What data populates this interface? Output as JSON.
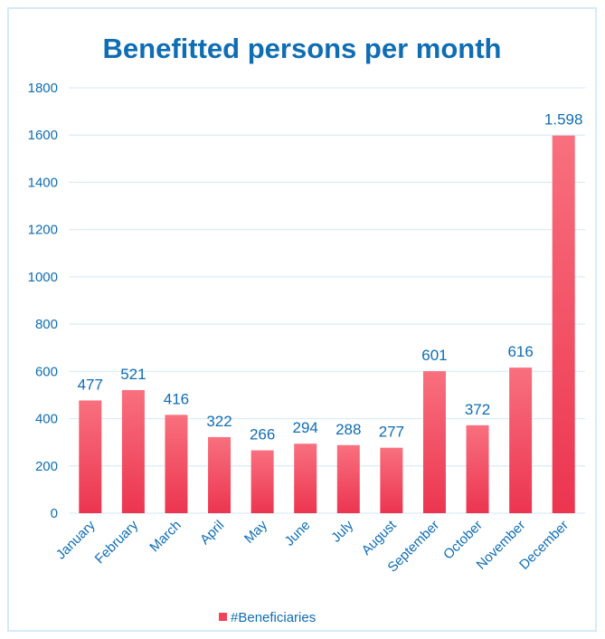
{
  "chart_data": {
    "type": "bar",
    "title": "Benefitted persons per month",
    "categories": [
      "January",
      "February",
      "March",
      "April",
      "May",
      "June",
      "July",
      "August",
      "September",
      "October",
      "November",
      "December"
    ],
    "series": [
      {
        "name": "#Beneficiaries",
        "values": [
          477,
          521,
          416,
          322,
          266,
          294,
          288,
          277,
          601,
          372,
          616,
          1598
        ],
        "data_labels": [
          "477",
          "521",
          "416",
          "322",
          "266",
          "294",
          "288",
          "277",
          "601",
          "372",
          "616",
          "1.598"
        ],
        "color": "#f0435c"
      }
    ],
    "yticks": [
      "0",
      "200",
      "400",
      "600",
      "800",
      "1000",
      "1200",
      "1400",
      "1600",
      "1800"
    ],
    "ylim": [
      0,
      1800
    ],
    "grid": true,
    "legend_position": "bottom",
    "colors": {
      "text": "#0f6db4",
      "grid": "#d9ecf6",
      "bar_top": "#f8707e",
      "bar_bottom": "#ec3550",
      "border": "#d5ebf5"
    }
  }
}
